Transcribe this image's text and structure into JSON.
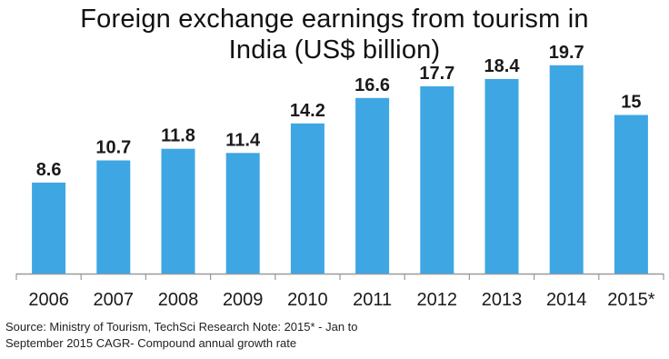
{
  "chart_data": {
    "type": "bar",
    "title": "Foreign exchange earnings from tourism in India (US$ billion)",
    "categories": [
      "2006",
      "2007",
      "2008",
      "2009",
      "2010",
      "2011",
      "2012",
      "2013",
      "2014",
      "2015*"
    ],
    "values": [
      8.6,
      10.7,
      11.8,
      11.4,
      14.2,
      16.6,
      17.7,
      18.4,
      19.7,
      15
    ],
    "value_labels": [
      "8.6",
      "10.7",
      "11.8",
      "11.4",
      "14.2",
      "16.6",
      "17.7",
      "18.4",
      "19.7",
      "15"
    ],
    "xlabel": "",
    "ylabel": "",
    "ylim": [
      0,
      22
    ],
    "grid": false,
    "legend": "none",
    "bar_color": "#3ea6e3",
    "axis_color": "#9a9a9a"
  },
  "source_note": "Source: Ministry of Tourism, TechSci Research Note: 2015* - Jan to September 2015 CAGR- Compound annual growth rate"
}
